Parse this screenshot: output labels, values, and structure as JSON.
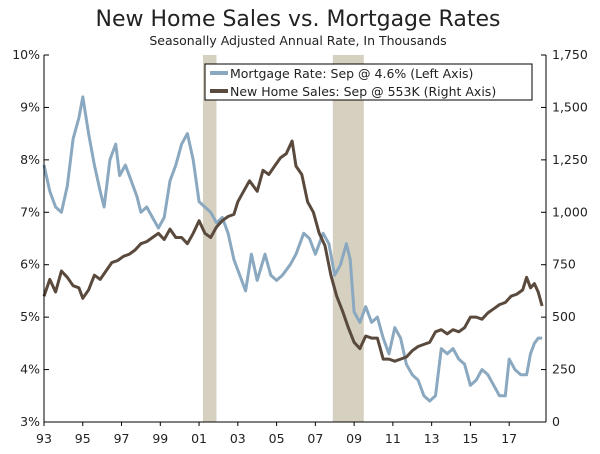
{
  "chart_data": {
    "type": "line",
    "title": "New Home Sales vs. Mortgage Rates",
    "subtitle": "Seasonally Adjusted Annual Rate, In Thousands",
    "x_ticks": [
      "93",
      "95",
      "97",
      "99",
      "01",
      "03",
      "05",
      "07",
      "09",
      "11",
      "13",
      "15",
      "17"
    ],
    "x_range": [
      1993.0,
      2018.9
    ],
    "left_axis": {
      "ticks": [
        "3%",
        "4%",
        "5%",
        "6%",
        "7%",
        "8%",
        "9%",
        "10%"
      ],
      "range": [
        3,
        10
      ],
      "unit": "%"
    },
    "right_axis": {
      "ticks": [
        "0",
        "250",
        "500",
        "750",
        "1,000",
        "1,250",
        "1,500",
        "1,750"
      ],
      "range": [
        0,
        1750
      ],
      "unit": "thousands"
    },
    "recession_shading": [
      [
        2001.2,
        2001.9
      ],
      [
        2007.9,
        2009.5
      ]
    ],
    "legend_position": "top-right",
    "series": [
      {
        "name": "Mortgage Rate: Sep @ 4.6% (Left Axis)",
        "axis": "left",
        "color": "#8aa8bf",
        "points": [
          [
            1993.0,
            7.9
          ],
          [
            1993.3,
            7.4
          ],
          [
            1993.6,
            7.1
          ],
          [
            1993.9,
            7.0
          ],
          [
            1994.2,
            7.5
          ],
          [
            1994.5,
            8.4
          ],
          [
            1994.8,
            8.8
          ],
          [
            1995.0,
            9.2
          ],
          [
            1995.3,
            8.5
          ],
          [
            1995.6,
            7.9
          ],
          [
            1995.9,
            7.4
          ],
          [
            1996.1,
            7.1
          ],
          [
            1996.4,
            8.0
          ],
          [
            1996.7,
            8.3
          ],
          [
            1996.9,
            7.7
          ],
          [
            1997.2,
            7.9
          ],
          [
            1997.5,
            7.6
          ],
          [
            1997.8,
            7.3
          ],
          [
            1998.0,
            7.0
          ],
          [
            1998.3,
            7.1
          ],
          [
            1998.6,
            6.9
          ],
          [
            1998.9,
            6.7
          ],
          [
            1999.2,
            6.9
          ],
          [
            1999.5,
            7.6
          ],
          [
            1999.8,
            7.9
          ],
          [
            2000.1,
            8.3
          ],
          [
            2000.4,
            8.5
          ],
          [
            2000.7,
            8.0
          ],
          [
            2001.0,
            7.2
          ],
          [
            2001.3,
            7.1
          ],
          [
            2001.6,
            7.0
          ],
          [
            2001.9,
            6.8
          ],
          [
            2002.2,
            6.9
          ],
          [
            2002.5,
            6.6
          ],
          [
            2002.8,
            6.1
          ],
          [
            2003.0,
            5.9
          ],
          [
            2003.4,
            5.5
          ],
          [
            2003.7,
            6.2
          ],
          [
            2004.0,
            5.7
          ],
          [
            2004.4,
            6.2
          ],
          [
            2004.7,
            5.8
          ],
          [
            2005.0,
            5.7
          ],
          [
            2005.3,
            5.8
          ],
          [
            2005.7,
            6.0
          ],
          [
            2006.0,
            6.2
          ],
          [
            2006.4,
            6.6
          ],
          [
            2006.7,
            6.5
          ],
          [
            2007.0,
            6.2
          ],
          [
            2007.4,
            6.6
          ],
          [
            2007.7,
            6.4
          ],
          [
            2008.0,
            5.8
          ],
          [
            2008.3,
            6.0
          ],
          [
            2008.6,
            6.4
          ],
          [
            2008.8,
            6.1
          ],
          [
            2009.0,
            5.1
          ],
          [
            2009.3,
            4.9
          ],
          [
            2009.6,
            5.2
          ],
          [
            2009.9,
            4.9
          ],
          [
            2010.2,
            5.0
          ],
          [
            2010.5,
            4.6
          ],
          [
            2010.8,
            4.3
          ],
          [
            2011.1,
            4.8
          ],
          [
            2011.4,
            4.6
          ],
          [
            2011.7,
            4.1
          ],
          [
            2012.0,
            3.9
          ],
          [
            2012.3,
            3.8
          ],
          [
            2012.6,
            3.5
          ],
          [
            2012.9,
            3.4
          ],
          [
            2013.2,
            3.5
          ],
          [
            2013.5,
            4.4
          ],
          [
            2013.8,
            4.3
          ],
          [
            2014.1,
            4.4
          ],
          [
            2014.4,
            4.2
          ],
          [
            2014.7,
            4.1
          ],
          [
            2015.0,
            3.7
          ],
          [
            2015.3,
            3.8
          ],
          [
            2015.6,
            4.0
          ],
          [
            2015.9,
            3.9
          ],
          [
            2016.2,
            3.7
          ],
          [
            2016.5,
            3.5
          ],
          [
            2016.8,
            3.5
          ],
          [
            2017.0,
            4.2
          ],
          [
            2017.3,
            4.0
          ],
          [
            2017.6,
            3.9
          ],
          [
            2017.9,
            3.9
          ],
          [
            2018.1,
            4.3
          ],
          [
            2018.3,
            4.5
          ],
          [
            2018.5,
            4.6
          ],
          [
            2018.7,
            4.6
          ]
        ]
      },
      {
        "name": "New Home Sales: Sep @ 553K (Right Axis)",
        "axis": "right",
        "color": "#5a4a3d",
        "points": [
          [
            1993.0,
            600
          ],
          [
            1993.3,
            680
          ],
          [
            1993.6,
            620
          ],
          [
            1993.9,
            720
          ],
          [
            1994.2,
            690
          ],
          [
            1994.5,
            650
          ],
          [
            1994.8,
            640
          ],
          [
            1995.0,
            590
          ],
          [
            1995.3,
            630
          ],
          [
            1995.6,
            700
          ],
          [
            1995.9,
            680
          ],
          [
            1996.2,
            720
          ],
          [
            1996.5,
            760
          ],
          [
            1996.8,
            770
          ],
          [
            1997.1,
            790
          ],
          [
            1997.4,
            800
          ],
          [
            1997.7,
            820
          ],
          [
            1998.0,
            850
          ],
          [
            1998.3,
            860
          ],
          [
            1998.6,
            880
          ],
          [
            1998.9,
            900
          ],
          [
            1999.2,
            870
          ],
          [
            1999.5,
            920
          ],
          [
            1999.8,
            880
          ],
          [
            2000.1,
            880
          ],
          [
            2000.4,
            850
          ],
          [
            2000.7,
            900
          ],
          [
            2001.0,
            960
          ],
          [
            2001.3,
            900
          ],
          [
            2001.6,
            880
          ],
          [
            2001.9,
            930
          ],
          [
            2002.2,
            960
          ],
          [
            2002.5,
            980
          ],
          [
            2002.8,
            990
          ],
          [
            2003.0,
            1050
          ],
          [
            2003.3,
            1100
          ],
          [
            2003.6,
            1150
          ],
          [
            2004.0,
            1100
          ],
          [
            2004.3,
            1200
          ],
          [
            2004.6,
            1180
          ],
          [
            2004.9,
            1220
          ],
          [
            2005.2,
            1260
          ],
          [
            2005.5,
            1280
          ],
          [
            2005.8,
            1340
          ],
          [
            2006.0,
            1220
          ],
          [
            2006.3,
            1180
          ],
          [
            2006.6,
            1050
          ],
          [
            2006.9,
            1000
          ],
          [
            2007.2,
            900
          ],
          [
            2007.5,
            840
          ],
          [
            2007.8,
            700
          ],
          [
            2008.1,
            600
          ],
          [
            2008.4,
            530
          ],
          [
            2008.7,
            450
          ],
          [
            2009.0,
            380
          ],
          [
            2009.3,
            350
          ],
          [
            2009.6,
            410
          ],
          [
            2009.9,
            400
          ],
          [
            2010.2,
            400
          ],
          [
            2010.5,
            300
          ],
          [
            2010.8,
            300
          ],
          [
            2011.1,
            290
          ],
          [
            2011.4,
            300
          ],
          [
            2011.7,
            310
          ],
          [
            2012.0,
            340
          ],
          [
            2012.3,
            360
          ],
          [
            2012.6,
            370
          ],
          [
            2012.9,
            380
          ],
          [
            2013.2,
            430
          ],
          [
            2013.5,
            440
          ],
          [
            2013.8,
            420
          ],
          [
            2014.1,
            440
          ],
          [
            2014.4,
            430
          ],
          [
            2014.7,
            450
          ],
          [
            2015.0,
            500
          ],
          [
            2015.3,
            500
          ],
          [
            2015.6,
            490
          ],
          [
            2015.9,
            520
          ],
          [
            2016.2,
            540
          ],
          [
            2016.5,
            560
          ],
          [
            2016.8,
            570
          ],
          [
            2017.1,
            600
          ],
          [
            2017.4,
            610
          ],
          [
            2017.7,
            630
          ],
          [
            2017.9,
            690
          ],
          [
            2018.1,
            640
          ],
          [
            2018.3,
            660
          ],
          [
            2018.5,
            620
          ],
          [
            2018.7,
            553
          ]
        ]
      }
    ]
  }
}
